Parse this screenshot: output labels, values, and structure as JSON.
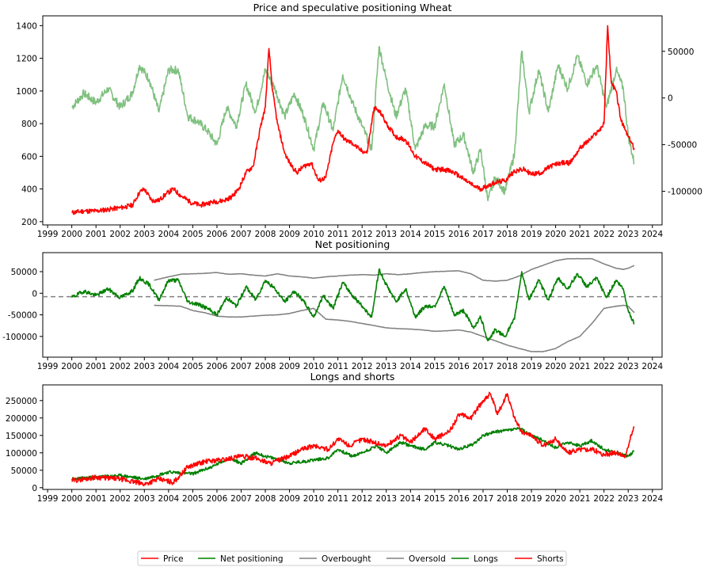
{
  "colors": {
    "price": "#ff0000",
    "net": "#008000",
    "net_secondary_panel1": "#80c080",
    "bands": "#808080",
    "zero_line": "#808080"
  },
  "chart_data": [
    {
      "type": "line",
      "title": "Price and speculative positioning Wheat",
      "x_range": [
        1998.8,
        2024.4
      ],
      "x_ticks": [
        "1999",
        "2000",
        "2001",
        "2002",
        "2003",
        "2004",
        "2005",
        "2006",
        "2007",
        "2008",
        "2009",
        "2010",
        "2011",
        "2012",
        "2013",
        "2014",
        "2015",
        "2016",
        "2017",
        "2018",
        "2019",
        "2020",
        "2021",
        "2022",
        "2023",
        "2024"
      ],
      "ylim_left": [
        180,
        1460
      ],
      "yticks_left": [
        "200",
        "400",
        "600",
        "800",
        "1000",
        "1200",
        "1400"
      ],
      "ylim_right": [
        -136000,
        88000
      ],
      "yticks_right": [
        "50000",
        "0",
        "-50000",
        "-100000"
      ],
      "series": [
        {
          "name": "Price",
          "axis": "left",
          "x": [
            2000.0,
            2000.5,
            2001.0,
            2001.5,
            2002.0,
            2002.5,
            2002.8,
            2003.0,
            2003.3,
            2003.6,
            2003.9,
            2004.2,
            2004.5,
            2004.9,
            2005.3,
            2005.8,
            2006.3,
            2006.6,
            2006.9,
            2007.2,
            2007.5,
            2007.8,
            2008.0,
            2008.15,
            2008.3,
            2008.5,
            2008.8,
            2009.0,
            2009.3,
            2009.6,
            2009.9,
            2010.2,
            2010.5,
            2010.8,
            2011.0,
            2011.3,
            2011.6,
            2011.9,
            2012.2,
            2012.5,
            2012.8,
            2013.0,
            2013.4,
            2013.8,
            2014.2,
            2014.6,
            2015.0,
            2015.4,
            2015.8,
            2016.2,
            2016.6,
            2016.9,
            2017.2,
            2017.5,
            2017.9,
            2018.3,
            2018.7,
            2019.0,
            2019.4,
            2019.8,
            2020.2,
            2020.6,
            2021.0,
            2021.4,
            2021.8,
            2022.0,
            2022.15,
            2022.3,
            2022.5,
            2022.7,
            2023.0,
            2023.25
          ],
          "y": [
            255,
            265,
            265,
            275,
            285,
            300,
            380,
            400,
            330,
            330,
            370,
            400,
            360,
            320,
            300,
            320,
            330,
            350,
            400,
            500,
            540,
            780,
            900,
            1260,
            1000,
            800,
            620,
            560,
            500,
            540,
            560,
            450,
            470,
            680,
            760,
            700,
            680,
            640,
            620,
            900,
            860,
            800,
            720,
            700,
            600,
            560,
            520,
            520,
            500,
            460,
            420,
            400,
            420,
            440,
            450,
            510,
            520,
            490,
            500,
            540,
            560,
            560,
            650,
            700,
            760,
            800,
            1400,
            1050,
            1000,
            820,
            720,
            650
          ]
        },
        {
          "name": "Net positioning",
          "axis": "right",
          "x": [
            2000.0,
            2000.5,
            2001.0,
            2001.5,
            2002.0,
            2002.5,
            2002.8,
            2003.2,
            2003.6,
            2004.0,
            2004.4,
            2004.8,
            2005.2,
            2005.6,
            2006.0,
            2006.4,
            2006.8,
            2007.2,
            2007.6,
            2008.0,
            2008.4,
            2008.8,
            2009.2,
            2009.6,
            2010.0,
            2010.4,
            2010.8,
            2011.2,
            2011.6,
            2012.0,
            2012.4,
            2012.7,
            2013.0,
            2013.4,
            2013.8,
            2014.2,
            2014.6,
            2015.0,
            2015.4,
            2015.8,
            2016.2,
            2016.6,
            2016.9,
            2017.2,
            2017.5,
            2017.9,
            2018.3,
            2018.6,
            2018.9,
            2019.3,
            2019.7,
            2020.1,
            2020.5,
            2020.9,
            2021.3,
            2021.7,
            2022.1,
            2022.5,
            2022.8,
            2023.0,
            2023.25
          ],
          "y": [
            -10000,
            5000,
            -5000,
            10000,
            -10000,
            5000,
            35000,
            20000,
            -15000,
            30000,
            30000,
            -20000,
            -25000,
            -35000,
            -50000,
            -10000,
            -30000,
            15000,
            -15000,
            30000,
            10000,
            -20000,
            5000,
            -20000,
            -55000,
            -5000,
            -35000,
            25000,
            -5000,
            -30000,
            -55000,
            55000,
            20000,
            -20000,
            10000,
            -55000,
            -30000,
            -30000,
            15000,
            -50000,
            -40000,
            -80000,
            -55000,
            -110000,
            -85000,
            -100000,
            -60000,
            50000,
            -15000,
            30000,
            -15000,
            35000,
            10000,
            45000,
            15000,
            35000,
            -10000,
            30000,
            10000,
            -40000,
            -70000
          ]
        }
      ]
    },
    {
      "type": "line",
      "title": "Net positioning",
      "x_range": [
        1998.8,
        2024.4
      ],
      "x_ticks": [
        "1999",
        "2000",
        "2001",
        "2002",
        "2003",
        "2004",
        "2005",
        "2006",
        "2007",
        "2008",
        "2009",
        "2010",
        "2011",
        "2012",
        "2013",
        "2014",
        "2015",
        "2016",
        "2017",
        "2018",
        "2019",
        "2020",
        "2021",
        "2022",
        "2023",
        "2024"
      ],
      "ylim": [
        -148000,
        94000
      ],
      "yticks": [
        "50000",
        "0",
        "-50000",
        "-100000"
      ],
      "zero_line": -8000,
      "series": [
        {
          "name": "Net positioning",
          "x": [
            2000.0,
            2000.5,
            2001.0,
            2001.5,
            2002.0,
            2002.5,
            2002.8,
            2003.2,
            2003.6,
            2004.0,
            2004.4,
            2004.8,
            2005.2,
            2005.6,
            2006.0,
            2006.4,
            2006.8,
            2007.2,
            2007.6,
            2008.0,
            2008.4,
            2008.8,
            2009.2,
            2009.6,
            2010.0,
            2010.4,
            2010.8,
            2011.2,
            2011.6,
            2012.0,
            2012.4,
            2012.7,
            2013.0,
            2013.4,
            2013.8,
            2014.2,
            2014.6,
            2015.0,
            2015.4,
            2015.8,
            2016.2,
            2016.6,
            2016.9,
            2017.2,
            2017.5,
            2017.9,
            2018.3,
            2018.6,
            2018.9,
            2019.3,
            2019.7,
            2020.1,
            2020.5,
            2020.9,
            2021.3,
            2021.7,
            2022.1,
            2022.5,
            2022.8,
            2023.0,
            2023.25
          ],
          "y": [
            -10000,
            5000,
            -5000,
            10000,
            -10000,
            5000,
            35000,
            20000,
            -15000,
            30000,
            30000,
            -20000,
            -25000,
            -35000,
            -50000,
            -10000,
            -30000,
            15000,
            -15000,
            30000,
            10000,
            -20000,
            5000,
            -20000,
            -55000,
            -5000,
            -35000,
            25000,
            -5000,
            -30000,
            -55000,
            55000,
            20000,
            -20000,
            10000,
            -55000,
            -30000,
            -30000,
            15000,
            -50000,
            -40000,
            -80000,
            -55000,
            -110000,
            -85000,
            -100000,
            -60000,
            50000,
            -15000,
            30000,
            -15000,
            35000,
            10000,
            45000,
            15000,
            35000,
            -10000,
            30000,
            10000,
            -40000,
            -70000
          ]
        },
        {
          "name": "Overbought",
          "x": [
            2003.4,
            2004.0,
            2004.5,
            2005.0,
            2005.5,
            2006.0,
            2006.5,
            2007.0,
            2007.5,
            2008.0,
            2008.5,
            2009.0,
            2009.5,
            2010.0,
            2010.5,
            2011.0,
            2011.5,
            2012.0,
            2012.5,
            2013.0,
            2013.5,
            2014.0,
            2014.5,
            2015.0,
            2015.5,
            2016.0,
            2016.5,
            2017.0,
            2017.5,
            2018.0,
            2018.5,
            2019.0,
            2019.5,
            2020.0,
            2020.5,
            2021.0,
            2021.5,
            2022.0,
            2022.5,
            2022.8,
            2023.0,
            2023.25
          ],
          "y": [
            30000,
            38000,
            44000,
            45000,
            46000,
            48000,
            44000,
            45000,
            42000,
            40000,
            45000,
            40000,
            38000,
            35000,
            38000,
            40000,
            42000,
            43000,
            42000,
            45000,
            43000,
            45000,
            48000,
            50000,
            51000,
            52000,
            45000,
            30000,
            28000,
            30000,
            40000,
            55000,
            65000,
            75000,
            80000,
            80000,
            80000,
            68000,
            58000,
            55000,
            58000,
            64000
          ]
        },
        {
          "name": "Oversold",
          "x": [
            2003.4,
            2004.0,
            2004.5,
            2005.0,
            2005.5,
            2006.0,
            2006.5,
            2007.0,
            2007.5,
            2008.0,
            2008.5,
            2009.0,
            2009.5,
            2010.0,
            2010.5,
            2011.0,
            2011.5,
            2012.0,
            2012.5,
            2013.0,
            2013.5,
            2014.0,
            2014.5,
            2015.0,
            2015.5,
            2016.0,
            2016.5,
            2017.0,
            2017.5,
            2018.0,
            2018.5,
            2019.0,
            2019.5,
            2020.0,
            2020.5,
            2021.0,
            2021.5,
            2022.0,
            2022.5,
            2022.8,
            2023.0,
            2023.25
          ],
          "y": [
            -28000,
            -29000,
            -30000,
            -40000,
            -45000,
            -53000,
            -55000,
            -55000,
            -53000,
            -51000,
            -50000,
            -47000,
            -40000,
            -35000,
            -60000,
            -62000,
            -65000,
            -70000,
            -75000,
            -80000,
            -82000,
            -83000,
            -85000,
            -88000,
            -87000,
            -85000,
            -90000,
            -100000,
            -110000,
            -120000,
            -128000,
            -135000,
            -135000,
            -128000,
            -112000,
            -100000,
            -70000,
            -35000,
            -30000,
            -28000,
            -30000,
            -45000
          ]
        }
      ]
    },
    {
      "type": "line",
      "title": "Longs and shorts",
      "x_range": [
        1998.8,
        2024.4
      ],
      "x_ticks": [
        "1999",
        "2000",
        "2001",
        "2002",
        "2003",
        "2004",
        "2005",
        "2006",
        "2007",
        "2008",
        "2009",
        "2010",
        "2011",
        "2012",
        "2013",
        "2014",
        "2015",
        "2016",
        "2017",
        "2018",
        "2019",
        "2020",
        "2021",
        "2022",
        "2023",
        "2024"
      ],
      "ylim": [
        -5000,
        295000
      ],
      "yticks": [
        "0",
        "50000",
        "100000",
        "150000",
        "200000",
        "250000"
      ],
      "series": [
        {
          "name": "Longs",
          "x": [
            2000.0,
            2001.0,
            2002.0,
            2003.0,
            2004.0,
            2005.0,
            2005.8,
            2006.5,
            2007.0,
            2007.6,
            2008.0,
            2008.6,
            2009.0,
            2009.6,
            2010.0,
            2010.6,
            2011.0,
            2011.6,
            2012.0,
            2012.6,
            2013.0,
            2013.6,
            2014.0,
            2014.6,
            2015.0,
            2015.6,
            2016.0,
            2016.6,
            2017.0,
            2017.5,
            2018.0,
            2018.5,
            2019.0,
            2019.5,
            2020.0,
            2020.5,
            2021.0,
            2021.5,
            2022.0,
            2022.5,
            2023.0,
            2023.25
          ],
          "y": [
            25000,
            30000,
            35000,
            25000,
            45000,
            40000,
            60000,
            85000,
            70000,
            100000,
            90000,
            80000,
            70000,
            75000,
            80000,
            85000,
            110000,
            90000,
            100000,
            120000,
            100000,
            130000,
            120000,
            110000,
            130000,
            120000,
            110000,
            125000,
            150000,
            160000,
            165000,
            170000,
            150000,
            135000,
            115000,
            130000,
            120000,
            135000,
            110000,
            100000,
            90000,
            105000
          ]
        },
        {
          "name": "Shorts",
          "x": [
            2000.0,
            2001.0,
            2002.0,
            2003.0,
            2003.6,
            2004.2,
            2004.8,
            2005.5,
            2006.2,
            2007.0,
            2007.6,
            2008.2,
            2009.0,
            2009.5,
            2010.0,
            2010.6,
            2011.0,
            2011.5,
            2012.0,
            2012.5,
            2013.0,
            2013.6,
            2014.0,
            2014.6,
            2015.0,
            2015.6,
            2016.0,
            2016.5,
            2017.0,
            2017.3,
            2017.6,
            2018.0,
            2018.3,
            2018.6,
            2019.0,
            2019.5,
            2020.0,
            2020.5,
            2021.0,
            2021.5,
            2022.0,
            2022.5,
            2022.9,
            2023.1,
            2023.25
          ],
          "y": [
            20000,
            30000,
            25000,
            10000,
            25000,
            15000,
            60000,
            75000,
            80000,
            90000,
            85000,
            70000,
            90000,
            110000,
            120000,
            110000,
            140000,
            120000,
            140000,
            130000,
            120000,
            150000,
            130000,
            170000,
            140000,
            160000,
            210000,
            200000,
            250000,
            270000,
            210000,
            270000,
            200000,
            160000,
            150000,
            120000,
            140000,
            100000,
            110000,
            110000,
            95000,
            100000,
            90000,
            150000,
            175000
          ]
        }
      ]
    }
  ],
  "legend": {
    "items": [
      {
        "label": "Price",
        "color": "#ff0000"
      },
      {
        "label": "Net positioning",
        "color": "#008000"
      },
      {
        "label": "Overbought",
        "color": "#808080"
      },
      {
        "label": "Oversold",
        "color": "#808080"
      },
      {
        "label": "Longs",
        "color": "#008000"
      },
      {
        "label": "Shorts",
        "color": "#ff0000"
      }
    ]
  }
}
